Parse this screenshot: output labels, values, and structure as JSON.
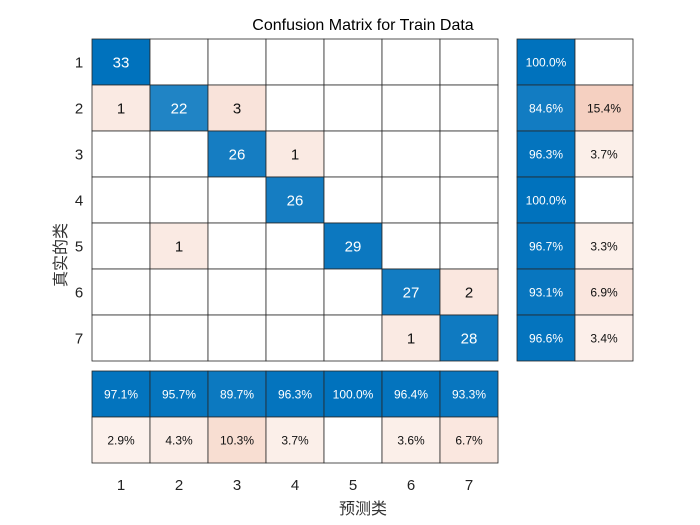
{
  "chart_data": {
    "type": "heatmap",
    "title": "Confusion Matrix for Train Data",
    "xlabel": "预测类",
    "ylabel": "真实的类",
    "class_labels": [
      "1",
      "2",
      "3",
      "4",
      "5",
      "6",
      "7"
    ],
    "matrix": [
      [
        33,
        0,
        0,
        0,
        0,
        0,
        0
      ],
      [
        1,
        22,
        3,
        0,
        0,
        0,
        0
      ],
      [
        0,
        0,
        26,
        1,
        0,
        0,
        0
      ],
      [
        0,
        0,
        0,
        26,
        0,
        0,
        0
      ],
      [
        0,
        1,
        0,
        0,
        29,
        0,
        0
      ],
      [
        0,
        0,
        0,
        0,
        0,
        27,
        2
      ],
      [
        0,
        0,
        0,
        0,
        0,
        1,
        28
      ]
    ],
    "row_summary": {
      "correct": [
        "100.0%",
        "84.6%",
        "96.3%",
        "100.0%",
        "96.7%",
        "93.1%",
        "96.6%"
      ],
      "incorrect": [
        "",
        "15.4%",
        "3.7%",
        "",
        "3.3%",
        "6.9%",
        "3.4%"
      ]
    },
    "column_summary": {
      "correct": [
        "97.1%",
        "95.7%",
        "89.7%",
        "96.3%",
        "100.0%",
        "96.4%",
        "93.3%"
      ],
      "incorrect": [
        "2.9%",
        "4.3%",
        "10.3%",
        "3.7%",
        "",
        "3.6%",
        "6.7%"
      ]
    },
    "colors": {
      "diagonal": "#0072BD",
      "off_diagonal": "#D95319",
      "border": "#262626"
    }
  }
}
